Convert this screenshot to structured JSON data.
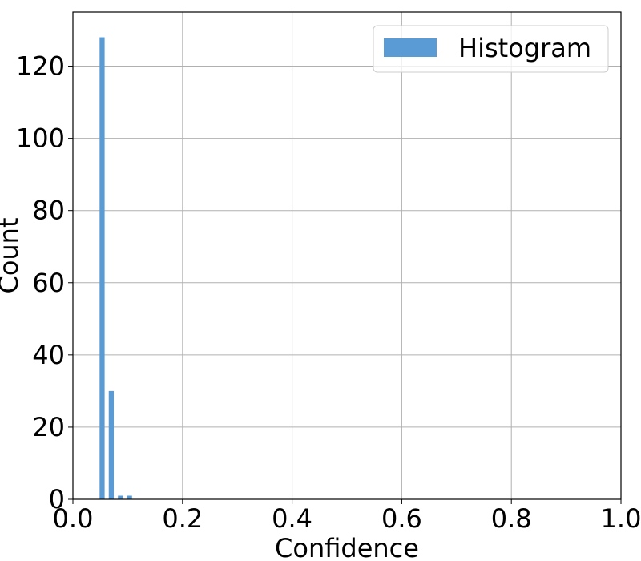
{
  "chart_data": {
    "type": "bar",
    "xlabel": "Confidence",
    "ylabel": "Count",
    "xlim": [
      0.0,
      1.0
    ],
    "ylim": [
      0,
      135
    ],
    "xticks": [
      "0.0",
      "0.2",
      "0.4",
      "0.6",
      "0.8",
      "1.0"
    ],
    "xtick_values": [
      0.0,
      0.2,
      0.4,
      0.6,
      0.8,
      1.0
    ],
    "yticks": [
      "0",
      "20",
      "40",
      "60",
      "80",
      "100",
      "120"
    ],
    "ytick_values": [
      0,
      20,
      40,
      60,
      80,
      100,
      120
    ],
    "grid": true,
    "legend_position": "top-right",
    "series": [
      {
        "name": "Histogram",
        "color": "#5b9bd5",
        "bins": [
          {
            "x": 0.0533,
            "value": 128
          },
          {
            "x": 0.07,
            "value": 30
          },
          {
            "x": 0.0867,
            "value": 1
          },
          {
            "x": 0.1033,
            "value": 1
          }
        ]
      }
    ]
  }
}
